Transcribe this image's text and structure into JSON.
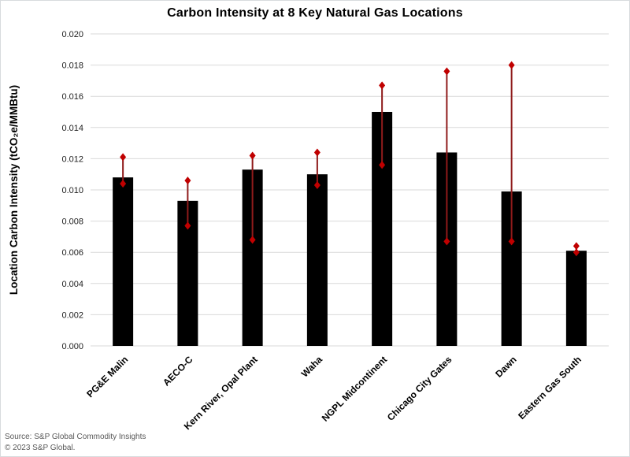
{
  "chart_data": {
    "type": "bar",
    "title": "Carbon Intensity at 8 Key Natural Gas Locations",
    "xlabel": "",
    "ylabel": "Location Carbon Intensity (tCO₂e/MMBtu)",
    "ylim": [
      0,
      0.02
    ],
    "ytick_step": 0.002,
    "yticks": [
      0,
      0.002,
      0.004,
      0.006,
      0.008,
      0.01,
      0.012,
      0.014,
      0.016,
      0.018,
      0.02
    ],
    "yticklabels": [
      "0.000",
      "0.002",
      "0.004",
      "0.006",
      "0.008",
      "0.010",
      "0.012",
      "0.014",
      "0.016",
      "0.018",
      "0.020"
    ],
    "grid": true,
    "legend": false,
    "categories": [
      "PG&E Malin",
      "AECO-C",
      "Kern River, Opal Plant",
      "Waha",
      "NGPL Midcontinent",
      "Chicago City Gates",
      "Dawn",
      "Eastern Gas South"
    ],
    "series": [
      {
        "name": "Location Carbon Intensity",
        "values": [
          0.0108,
          0.0093,
          0.0113,
          0.011,
          0.015,
          0.0124,
          0.0099,
          0.0061
        ]
      }
    ],
    "error_bars": {
      "low": [
        0.0104,
        0.0077,
        0.0068,
        0.0103,
        0.0116,
        0.0067,
        0.0067,
        0.006
      ],
      "high": [
        0.0121,
        0.0106,
        0.0122,
        0.0124,
        0.0167,
        0.0176,
        0.018,
        0.0064
      ]
    },
    "colors": {
      "bar": "#000000",
      "error_line": "#8f1b1b",
      "error_marker": "#c00000",
      "gridline": "#d9d9d9",
      "title_text": "#000000",
      "tick_text": "#212121",
      "footer_text": "#595959"
    }
  },
  "footer": {
    "source": "Source: S&P Global Commodity Insights",
    "copyright": "© 2023 S&P Global."
  }
}
